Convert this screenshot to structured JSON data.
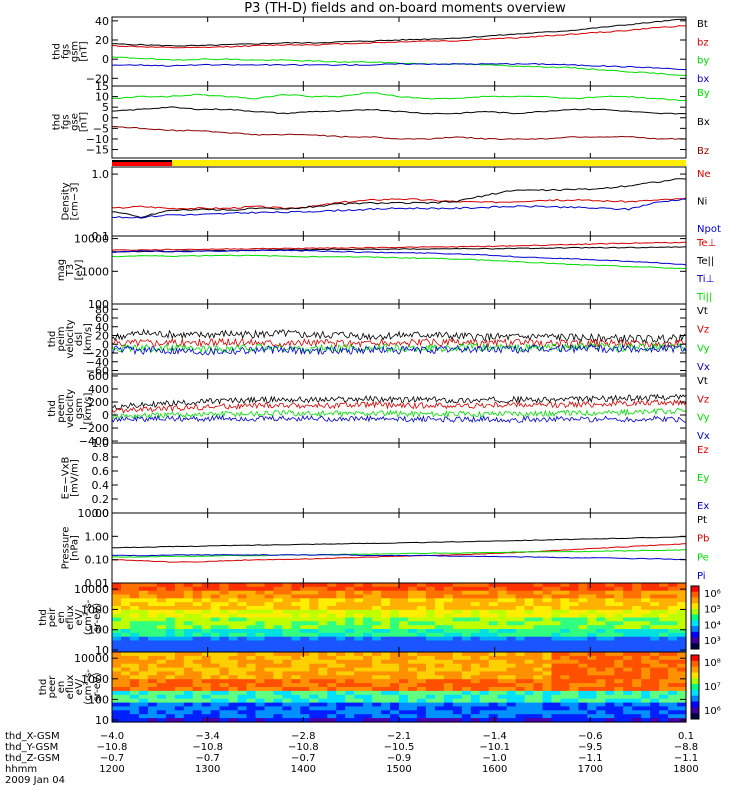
{
  "title": "P3 (TH-D) fields and on-board moments overview",
  "colors": {
    "black": "#000000",
    "red": "#d40000",
    "green": "#00dd00",
    "blue": "#0000cc",
    "yellow": "#ffee00",
    "darkred": "#8b0000"
  },
  "chart_data": [
    {
      "type": "line",
      "id": "fgs_gsm",
      "ylabel": [
        "thd",
        "fgs",
        "gsm",
        "[nT]"
      ],
      "ylim": [
        -28,
        44
      ],
      "yticks": [
        40,
        20,
        0,
        -20
      ],
      "ytick_labels": [
        "40",
        "20",
        "0",
        "−20"
      ],
      "series": [
        {
          "name": "Bt",
          "color": "black",
          "values": [
            16,
            15,
            14,
            14,
            15,
            16,
            17,
            17,
            18,
            19,
            20,
            21,
            22,
            24,
            26,
            28,
            30,
            33,
            36,
            39,
            42
          ]
        },
        {
          "name": "bz",
          "color": "red",
          "values": [
            14,
            13,
            12,
            12,
            13,
            14,
            15,
            15,
            16,
            17,
            18,
            19,
            19,
            21,
            22,
            24,
            26,
            28,
            30,
            33,
            35
          ]
        },
        {
          "name": "by",
          "color": "green",
          "values": [
            2,
            1,
            -1,
            0,
            0,
            -1,
            -1,
            -2,
            -3,
            -3,
            -4,
            -5,
            -5,
            -6,
            -7,
            -8,
            -9,
            -11,
            -13,
            -15,
            -17
          ]
        },
        {
          "name": "bx",
          "color": "blue",
          "values": [
            -6,
            -6,
            -7,
            -6,
            -6,
            -6,
            -6,
            -6,
            -6,
            -6,
            -5,
            -5,
            -5,
            -5,
            -5,
            -5,
            -6,
            -7,
            -8,
            -9,
            -11
          ]
        }
      ]
    },
    {
      "type": "line",
      "id": "fgs_gse",
      "ylabel": [
        "thd",
        "fgs",
        "gse",
        "[nT]"
      ],
      "ylim": [
        -19,
        15
      ],
      "yticks": [
        15,
        10,
        5,
        0,
        -5,
        -10,
        -15
      ],
      "ytick_labels": [
        "15",
        "10",
        "5",
        "0",
        "−5",
        "−10",
        "−15"
      ],
      "series": [
        {
          "name": "By",
          "color": "green",
          "values": [
            9,
            10,
            10,
            11,
            10,
            9,
            11,
            10,
            10,
            12,
            10,
            9,
            9,
            10,
            10,
            10,
            9,
            10,
            10,
            9,
            8
          ]
        },
        {
          "name": "Bx",
          "color": "black",
          "values": [
            3,
            4,
            5,
            4,
            4,
            3,
            2,
            3,
            3,
            4,
            3,
            2,
            2,
            3,
            2,
            3,
            4,
            4,
            3,
            2,
            2
          ]
        },
        {
          "name": "Bz",
          "color": "darkred",
          "values": [
            -4,
            -5,
            -6,
            -6,
            -7,
            -8,
            -8,
            -8,
            -9,
            -9,
            -10,
            -10,
            -9,
            -10,
            -10,
            -10,
            -9,
            -9,
            -9,
            -10,
            -10
          ]
        }
      ]
    },
    {
      "type": "line",
      "id": "density",
      "scale": "log",
      "ylabel": [
        "Density",
        "[cm−3]"
      ],
      "ylim": [
        0.1,
        1.3
      ],
      "yticks": [
        1.0,
        0.1
      ],
      "ytick_labels": [
        "1.0",
        "0.1"
      ],
      "series": [
        {
          "name": "Ne",
          "color": "red",
          "values": [
            0.28,
            0.3,
            0.28,
            0.28,
            0.28,
            0.3,
            0.28,
            0.3,
            0.35,
            0.38,
            0.4,
            0.38,
            0.36,
            0.35,
            0.36,
            0.38,
            0.38,
            0.37,
            0.36,
            0.38,
            0.4
          ]
        },
        {
          "name": "Ni",
          "color": "black",
          "values": [
            0.25,
            0.2,
            0.26,
            0.27,
            0.26,
            0.28,
            0.27,
            0.3,
            0.33,
            0.34,
            0.34,
            0.34,
            0.36,
            0.45,
            0.55,
            0.55,
            0.56,
            0.58,
            0.65,
            0.75,
            0.85
          ]
        },
        {
          "name": "Npot",
          "color": "blue",
          "values": [
            0.2,
            0.2,
            0.22,
            0.22,
            0.23,
            0.24,
            0.24,
            0.25,
            0.26,
            0.27,
            0.28,
            0.28,
            0.28,
            0.29,
            0.3,
            0.3,
            0.29,
            0.28,
            0.27,
            0.35,
            0.4
          ]
        }
      ]
    },
    {
      "type": "line",
      "id": "temperature",
      "scale": "log",
      "ylabel": [
        "mag",
        "T3",
        "[eV]"
      ],
      "ylim": [
        100,
        12000
      ],
      "yticks": [
        10000,
        1000,
        100
      ],
      "ytick_labels": [
        "10000",
        "1000",
        "100"
      ],
      "series": [
        {
          "name": "Te⊥",
          "color": "red",
          "values": [
            4500,
            4500,
            4600,
            4700,
            4800,
            4900,
            5000,
            5100,
            5200,
            5300,
            5400,
            5500,
            5600,
            5800,
            6000,
            6300,
            6600,
            6900,
            7200,
            7500,
            7600
          ]
        },
        {
          "name": "Te||",
          "color": "black",
          "values": [
            4000,
            4000,
            4100,
            4200,
            4300,
            4400,
            4500,
            4600,
            4700,
            4700,
            4800,
            4800,
            4900,
            4900,
            5000,
            5100,
            5200,
            5300,
            5300,
            5400,
            5500
          ]
        },
        {
          "name": "Ti⊥",
          "color": "blue",
          "values": [
            3800,
            4200,
            4000,
            4100,
            4200,
            4300,
            4400,
            4200,
            4000,
            3800,
            3700,
            3600,
            3400,
            3200,
            2800,
            2600,
            2400,
            2200,
            2000,
            1800,
            1600
          ]
        },
        {
          "name": "Ti||",
          "color": "green",
          "values": [
            2800,
            3000,
            2900,
            3000,
            3100,
            3000,
            2900,
            2800,
            2800,
            2700,
            2600,
            2500,
            2400,
            2200,
            2000,
            1800,
            1600,
            1500,
            1400,
            1300,
            1200
          ]
        }
      ]
    },
    {
      "type": "line",
      "id": "peim_dsl",
      "ylabel": [
        "thd",
        "peim",
        "velocity",
        "dsl",
        "[km/s]"
      ],
      "ylim": [
        -68,
        92
      ],
      "yticks": [
        80,
        60,
        40,
        20,
        0,
        -20,
        -40,
        -60
      ],
      "ytick_labels": [
        "80",
        "60",
        "40",
        "20",
        "0",
        "−20",
        "−40",
        "−60"
      ],
      "series": [
        {
          "name": "Vt",
          "color": "black",
          "values": [
            15,
            25,
            22,
            20,
            24,
            22,
            25,
            20,
            22,
            18,
            20,
            22,
            18,
            17,
            16,
            18,
            15,
            14,
            13,
            12,
            14
          ]
        },
        {
          "name": "Vz",
          "color": "red",
          "values": [
            2,
            5,
            4,
            3,
            4,
            5,
            3,
            4,
            2,
            3,
            2,
            4,
            3,
            2,
            3,
            2,
            1,
            2,
            3,
            2,
            1
          ]
        },
        {
          "name": "Vy",
          "color": "green",
          "values": [
            -8,
            -10,
            -9,
            -12,
            -10,
            -8,
            -9,
            -11,
            -9,
            -8,
            -10,
            -9,
            -8,
            -7,
            -9,
            -8,
            -7,
            -6,
            -8,
            -7,
            -6
          ]
        },
        {
          "name": "Vx",
          "color": "blue",
          "values": [
            -12,
            -14,
            -13,
            -16,
            -15,
            -12,
            -13,
            -15,
            -14,
            -12,
            -14,
            -13,
            -12,
            -11,
            -12,
            -11,
            -10,
            -9,
            -11,
            -10,
            -9
          ]
        }
      ]
    },
    {
      "type": "line",
      "id": "peem_gsm",
      "ylabel": [
        "thd",
        "peem",
        "velocity",
        "gsm",
        "[km/s]"
      ],
      "ylim": [
        -430,
        630
      ],
      "yticks": [
        600,
        400,
        200,
        0,
        -200,
        -400
      ],
      "ytick_labels": [
        "600",
        "400",
        "200",
        "0",
        "−200",
        "−400"
      ],
      "series": [
        {
          "name": "Vt",
          "color": "black",
          "values": [
            120,
            150,
            180,
            200,
            220,
            230,
            240,
            230,
            240,
            250,
            230,
            240,
            220,
            230,
            240,
            230,
            240,
            250,
            260,
            270,
            280
          ]
        },
        {
          "name": "Vz",
          "color": "red",
          "values": [
            60,
            80,
            100,
            120,
            130,
            140,
            150,
            140,
            150,
            160,
            140,
            150,
            140,
            150,
            160,
            150,
            160,
            170,
            180,
            190,
            200
          ]
        },
        {
          "name": "Vy",
          "color": "green",
          "values": [
            -20,
            -10,
            0,
            10,
            20,
            20,
            30,
            20,
            20,
            30,
            20,
            20,
            10,
            20,
            30,
            20,
            30,
            40,
            40,
            50,
            60
          ]
        },
        {
          "name": "Vx",
          "color": "blue",
          "values": [
            -60,
            -60,
            -50,
            -60,
            -50,
            -60,
            -60,
            -50,
            -60,
            -60,
            -70,
            -60,
            -70,
            -60,
            -70,
            -60,
            -70,
            -60,
            -70,
            -60,
            -70
          ]
        }
      ]
    },
    {
      "type": "line",
      "id": "efield",
      "ylabel": [
        "E=−VxB",
        "[mV/m]"
      ],
      "ylim": [
        0.0,
        1.0
      ],
      "yticks": [
        1.0,
        0.8,
        0.6,
        0.4,
        0.2,
        0.0
      ],
      "ytick_labels": [
        "1.0",
        "0.8",
        "0.6",
        "0.4",
        "0.2",
        "0.0"
      ],
      "series": [
        {
          "name": "Ez",
          "color": "red",
          "values": []
        },
        {
          "name": "Ey",
          "color": "green",
          "values": []
        },
        {
          "name": "Ex",
          "color": "blue",
          "values": []
        }
      ]
    },
    {
      "type": "line",
      "id": "pressure",
      "scale": "log",
      "ylabel": [
        "Pressure",
        "[nPa]"
      ],
      "ylim": [
        0.01,
        10.0
      ],
      "yticks": [
        10.0,
        1.0,
        0.1,
        0.01
      ],
      "ytick_labels": [
        "10.00",
        "1.00",
        "0.10",
        "0.01"
      ],
      "series": [
        {
          "name": "Pt",
          "color": "black",
          "values": [
            0.33,
            0.34,
            0.36,
            0.38,
            0.4,
            0.42,
            0.44,
            0.46,
            0.48,
            0.5,
            0.52,
            0.55,
            0.58,
            0.62,
            0.66,
            0.7,
            0.74,
            0.78,
            0.84,
            0.9,
            0.96
          ]
        },
        {
          "name": "Pb",
          "color": "red",
          "values": [
            0.1,
            0.09,
            0.08,
            0.08,
            0.09,
            0.1,
            0.1,
            0.11,
            0.12,
            0.13,
            0.14,
            0.15,
            0.16,
            0.18,
            0.2,
            0.23,
            0.27,
            0.31,
            0.36,
            0.42,
            0.48
          ]
        },
        {
          "name": "Pe",
          "color": "green",
          "values": [
            0.13,
            0.13,
            0.14,
            0.14,
            0.15,
            0.15,
            0.16,
            0.16,
            0.17,
            0.17,
            0.18,
            0.19,
            0.19,
            0.2,
            0.21,
            0.22,
            0.22,
            0.23,
            0.24,
            0.25,
            0.26
          ]
        },
        {
          "name": "Pi",
          "color": "blue",
          "values": [
            0.15,
            0.15,
            0.16,
            0.16,
            0.16,
            0.16,
            0.16,
            0.16,
            0.16,
            0.15,
            0.15,
            0.15,
            0.14,
            0.14,
            0.13,
            0.13,
            0.12,
            0.12,
            0.11,
            0.11,
            0.1
          ]
        }
      ]
    },
    {
      "type": "heatmap",
      "id": "peir",
      "ylabel": [
        "thd",
        "peir",
        "en",
        "eflux",
        "eV/",
        "(cm²-s-",
        "sr-eV)"
      ],
      "ylim": [
        8,
        20000
      ],
      "yticks": [
        10000,
        1000,
        100,
        10
      ],
      "ytick_labels": [
        "10000",
        "1000",
        "100",
        "10"
      ],
      "colorbar": {
        "ticks": [
          "10⁶",
          "10⁵",
          "10⁴",
          "10³"
        ]
      }
    },
    {
      "type": "heatmap",
      "id": "peer",
      "ylabel": [
        "thd",
        "peer",
        "en",
        "eflux",
        "eV/",
        "(cm²-s-",
        "sr-eV)"
      ],
      "ylim": [
        8,
        20000
      ],
      "yticks": [
        10000,
        1000,
        100,
        10
      ],
      "ytick_labels": [
        "10000",
        "1000",
        "100",
        "10"
      ],
      "colorbar": {
        "ticks": [
          "10⁸",
          "10⁷",
          "10⁶"
        ]
      }
    }
  ],
  "x_axis": {
    "rows": [
      {
        "label": "thd_X-GSM",
        "values": [
          "−4.0",
          "−3.4",
          "−2.8",
          "−2.1",
          "−1.4",
          "−0.6",
          "0.1"
        ]
      },
      {
        "label": "thd_Y-GSM",
        "values": [
          "−10.8",
          "−10.8",
          "−10.8",
          "−10.5",
          "−10.1",
          "−9.5",
          "−8.8"
        ]
      },
      {
        "label": "thd_Z-GSM",
        "values": [
          "−0.7",
          "−0.7",
          "−0.7",
          "−0.9",
          "−1.0",
          "−1.1",
          "−1.1"
        ]
      },
      {
        "label": "hhmm",
        "values": [
          "1200",
          "1300",
          "1400",
          "1500",
          "1600",
          "1700",
          "1800"
        ]
      }
    ],
    "date": "2009 Jan 04"
  }
}
